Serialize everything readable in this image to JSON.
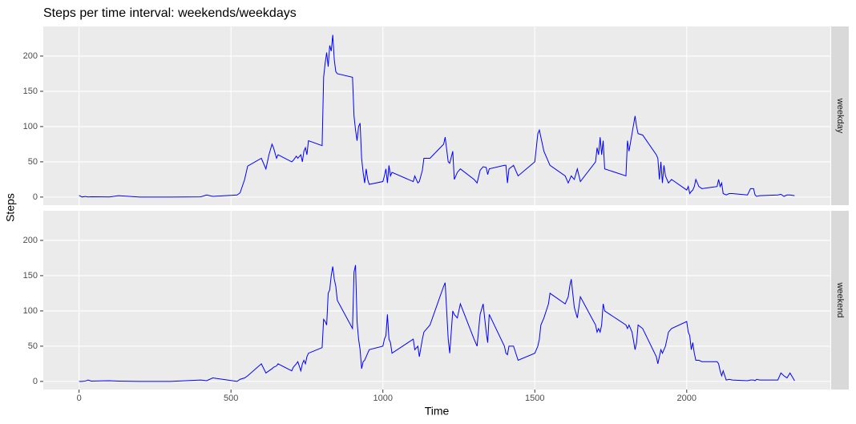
{
  "chart_data": {
    "type": "line",
    "title": "Steps per time interval: weekends/weekdays",
    "x_label": "Time",
    "y_label": "Steps",
    "facets": true,
    "grid": true,
    "xlim": [
      -117.75,
      2472.75
    ],
    "xticks": [
      0,
      500,
      1000,
      1500,
      2000
    ],
    "ylim": [
      -11.5,
      242
    ],
    "yticks": [
      0,
      50,
      100,
      150,
      200
    ],
    "x": [
      0,
      10,
      20,
      30,
      40,
      100,
      130,
      200,
      300,
      400,
      420,
      440,
      505,
      520,
      530,
      545,
      555,
      600,
      615,
      625,
      635,
      640,
      650,
      655,
      700,
      705,
      715,
      720,
      730,
      735,
      740,
      745,
      750,
      755,
      800,
      805,
      810,
      815,
      820,
      825,
      830,
      835,
      840,
      845,
      850,
      900,
      905,
      910,
      915,
      920,
      925,
      930,
      935,
      940,
      945,
      950,
      955,
      1000,
      1005,
      1010,
      1015,
      1020,
      1025,
      1030,
      1100,
      1105,
      1115,
      1120,
      1130,
      1135,
      1155,
      1200,
      1205,
      1215,
      1220,
      1230,
      1235,
      1245,
      1255,
      1300,
      1310,
      1320,
      1330,
      1340,
      1345,
      1350,
      1400,
      1405,
      1410,
      1415,
      1430,
      1445,
      1500,
      1510,
      1515,
      1520,
      1530,
      1545,
      1550,
      1600,
      1610,
      1615,
      1620,
      1630,
      1640,
      1650,
      1700,
      1705,
      1710,
      1715,
      1720,
      1725,
      1730,
      1800,
      1805,
      1810,
      1820,
      1830,
      1835,
      1840,
      1855,
      1900,
      1905,
      1910,
      1915,
      1920,
      1925,
      1930,
      1940,
      1950,
      2000,
      2005,
      2010,
      2015,
      2020,
      2025,
      2030,
      2040,
      2050,
      2100,
      2105,
      2110,
      2115,
      2120,
      2130,
      2140,
      2150,
      2200,
      2210,
      2220,
      2225,
      2230,
      2240,
      2300,
      2310,
      2320,
      2330,
      2340,
      2355
    ],
    "series": [
      {
        "name": "weekday",
        "color": "#0000ff",
        "values": [
          2.3,
          0.1,
          0.9,
          0.2,
          0.4,
          0.2,
          2,
          0,
          0,
          0.3,
          3,
          1,
          2.5,
          3,
          6,
          25,
          44,
          55,
          40,
          60,
          75,
          70,
          55,
          60,
          50,
          52,
          58,
          55,
          60,
          50,
          65,
          70,
          60,
          80,
          73,
          170,
          190,
          205,
          185,
          215,
          207,
          230,
          195,
          178,
          175,
          170,
          115,
          95,
          80,
          100,
          105,
          55,
          35,
          20,
          40,
          25,
          18,
          22,
          30,
          40,
          20,
          45,
          30,
          35,
          22,
          30,
          20,
          22,
          38,
          55,
          55,
          75,
          85,
          50,
          48,
          65,
          25,
          35,
          40,
          25,
          20,
          38,
          43,
          42,
          32,
          40,
          45,
          45,
          20,
          40,
          45,
          30,
          50,
          90,
          95,
          85,
          65,
          50,
          45,
          30,
          20,
          25,
          30,
          25,
          40,
          22,
          50,
          70,
          60,
          85,
          60,
          80,
          40,
          30,
          80,
          65,
          90,
          115,
          100,
          90,
          88,
          60,
          55,
          25,
          50,
          20,
          45,
          30,
          20,
          25,
          10,
          15,
          5,
          8,
          10,
          15,
          25,
          15,
          12,
          15,
          25,
          15,
          20,
          5,
          3,
          5,
          5,
          3,
          12,
          12,
          3,
          1,
          2,
          3,
          4,
          1,
          3,
          3,
          2
        ]
      },
      {
        "name": "weekend",
        "color": "#0000ff",
        "values": [
          0,
          0,
          0.5,
          2,
          0.5,
          1,
          0.5,
          0,
          0,
          2,
          1,
          5,
          1,
          0,
          3,
          5,
          8,
          25,
          12,
          15,
          18,
          20,
          22,
          25,
          15,
          20,
          25,
          28,
          15,
          25,
          30,
          25,
          35,
          40,
          48,
          88,
          85,
          80,
          125,
          130,
          150,
          163,
          145,
          135,
          115,
          75,
          155,
          165,
          85,
          60,
          45,
          18,
          28,
          30,
          35,
          40,
          45,
          50,
          60,
          65,
          95,
          60,
          55,
          40,
          60,
          45,
          50,
          35,
          60,
          70,
          80,
          135,
          140,
          60,
          40,
          100,
          95,
          90,
          110,
          60,
          50,
          95,
          110,
          70,
          55,
          95,
          50,
          40,
          38,
          50,
          50,
          30,
          40,
          50,
          60,
          80,
          90,
          110,
          125,
          110,
          120,
          135,
          145,
          105,
          90,
          120,
          80,
          70,
          75,
          70,
          80,
          110,
          100,
          80,
          75,
          80,
          70,
          45,
          55,
          80,
          75,
          35,
          25,
          35,
          45,
          40,
          45,
          50,
          70,
          75,
          85,
          70,
          65,
          45,
          55,
          40,
          30,
          30,
          28,
          28,
          25,
          15,
          8,
          15,
          2,
          3,
          2,
          1,
          2,
          2,
          1,
          3,
          2,
          2,
          12,
          8,
          5,
          12,
          1
        ]
      }
    ]
  }
}
